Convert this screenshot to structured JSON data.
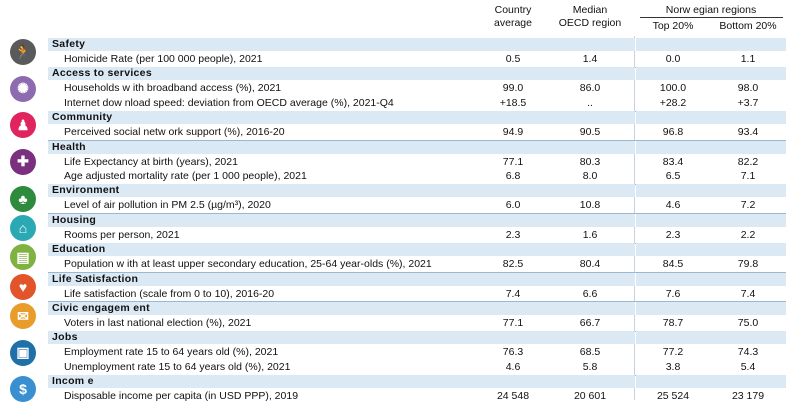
{
  "header": {
    "country_average": "Country\naverage",
    "median_oecd": "Median\nOECD region",
    "regions_title": "Norw egian regions",
    "top20": "Top 20%",
    "bottom20": "Bottom 20%"
  },
  "colors": {
    "category_bar": "#dbe9f5",
    "safety": "#5a5a5a",
    "access": "#8c6bb1",
    "community": "#e0245e",
    "health": "#7a2f7f",
    "environment": "#2e8b3e",
    "housing": "#2aa9b5",
    "education": "#7fb241",
    "life": "#e2552b",
    "civic": "#e89d2a",
    "jobs": "#1f6fa8",
    "income": "#3a8fd0"
  },
  "sections": [
    {
      "name": "Safety",
      "icon": "runner-icon",
      "color": "#5a5a5a",
      "rows": [
        {
          "label": "Homicide Rate (per 100 000 people), 2021",
          "c1": "0.5",
          "c2": "1.4",
          "c3": "0.0",
          "c4": "1.1"
        }
      ]
    },
    {
      "name": "Access to services",
      "icon": "network-icon",
      "color": "#8c6bb1",
      "rows": [
        {
          "label": "Households w ith broadband access (%), 2021",
          "c1": "99.0",
          "c2": "86.0",
          "c3": "100.0",
          "c4": "98.0"
        },
        {
          "label": "Internet dow nload speed: deviation from OECD average (%), 2021-Q4",
          "c1": "+18.5",
          "c2": "..",
          "c3": "+28.2",
          "c4": "+3.7"
        }
      ]
    },
    {
      "name": "Community",
      "icon": "people-icon",
      "color": "#e0245e",
      "rows": [
        {
          "label": "Perceived social netw ork support (%), 2016-20",
          "c1": "94.9",
          "c2": "90.5",
          "c3": "96.8",
          "c4": "93.4"
        }
      ]
    },
    {
      "name": "Health",
      "icon": "cross-icon",
      "color": "#7a2f7f",
      "rows": [
        {
          "label": "Life Expectancy at birth (years), 2021",
          "c1": "77.1",
          "c2": "80.3",
          "c3": "83.4",
          "c4": "82.2"
        },
        {
          "label": "Age adjusted mortality rate (per 1 000 people), 2021",
          "c1": "6.8",
          "c2": "8.0",
          "c3": "6.5",
          "c4": "7.1"
        }
      ]
    },
    {
      "name": "Environment",
      "icon": "tree-icon",
      "color": "#2e8b3e",
      "rows": [
        {
          "label": "Level of air pollution in PM 2.5 (µg/m³), 2020",
          "c1": "6.0",
          "c2": "10.8",
          "c3": "4.6",
          "c4": "7.2"
        }
      ]
    },
    {
      "name": "Housing",
      "icon": "house-icon",
      "color": "#2aa9b5",
      "rows": [
        {
          "label": "Rooms per person, 2021",
          "c1": "2.3",
          "c2": "1.6",
          "c3": "2.3",
          "c4": "2.2"
        }
      ]
    },
    {
      "name": "Education",
      "icon": "book-icon",
      "color": "#7fb241",
      "rows": [
        {
          "label": "Population w ith at least upper secondary education, 25-64 year-olds  (%), 2021",
          "c1": "82.5",
          "c2": "80.4",
          "c3": "84.5",
          "c4": "79.8"
        }
      ]
    },
    {
      "name": "Life Satisfaction",
      "icon": "heart-icon",
      "color": "#e2552b",
      "rows": [
        {
          "label": "Life satisfaction (scale from 0 to 10), 2016-20",
          "c1": "7.4",
          "c2": "6.6",
          "c3": "7.6",
          "c4": "7.4"
        }
      ]
    },
    {
      "name": "Civic engagem ent",
      "icon": "ballot-icon",
      "color": "#e89d2a",
      "rows": [
        {
          "label": "Voters in last national election (%), 2021",
          "c1": "77.1",
          "c2": "66.7",
          "c3": "78.7",
          "c4": "75.0"
        }
      ]
    },
    {
      "name": "Jobs",
      "icon": "briefcase-icon",
      "color": "#1f6fa8",
      "rows": [
        {
          "label": "Employment rate 15 to 64 years old (%), 2021",
          "c1": "76.3",
          "c2": "68.5",
          "c3": "77.2",
          "c4": "74.3"
        },
        {
          "label": "Unemployment rate 15 to 64 years old (%), 2021",
          "c1": "4.6",
          "c2": "5.8",
          "c3": "3.8",
          "c4": "5.4"
        }
      ]
    },
    {
      "name": "Incom e",
      "icon": "money-icon",
      "color": "#3a8fd0",
      "rows": [
        {
          "label": "Disposable income per capita (in USD PPP), 2019",
          "c1": "24 548",
          "c2": "20 601",
          "c3": "25 524",
          "c4": "23 179"
        }
      ]
    }
  ]
}
